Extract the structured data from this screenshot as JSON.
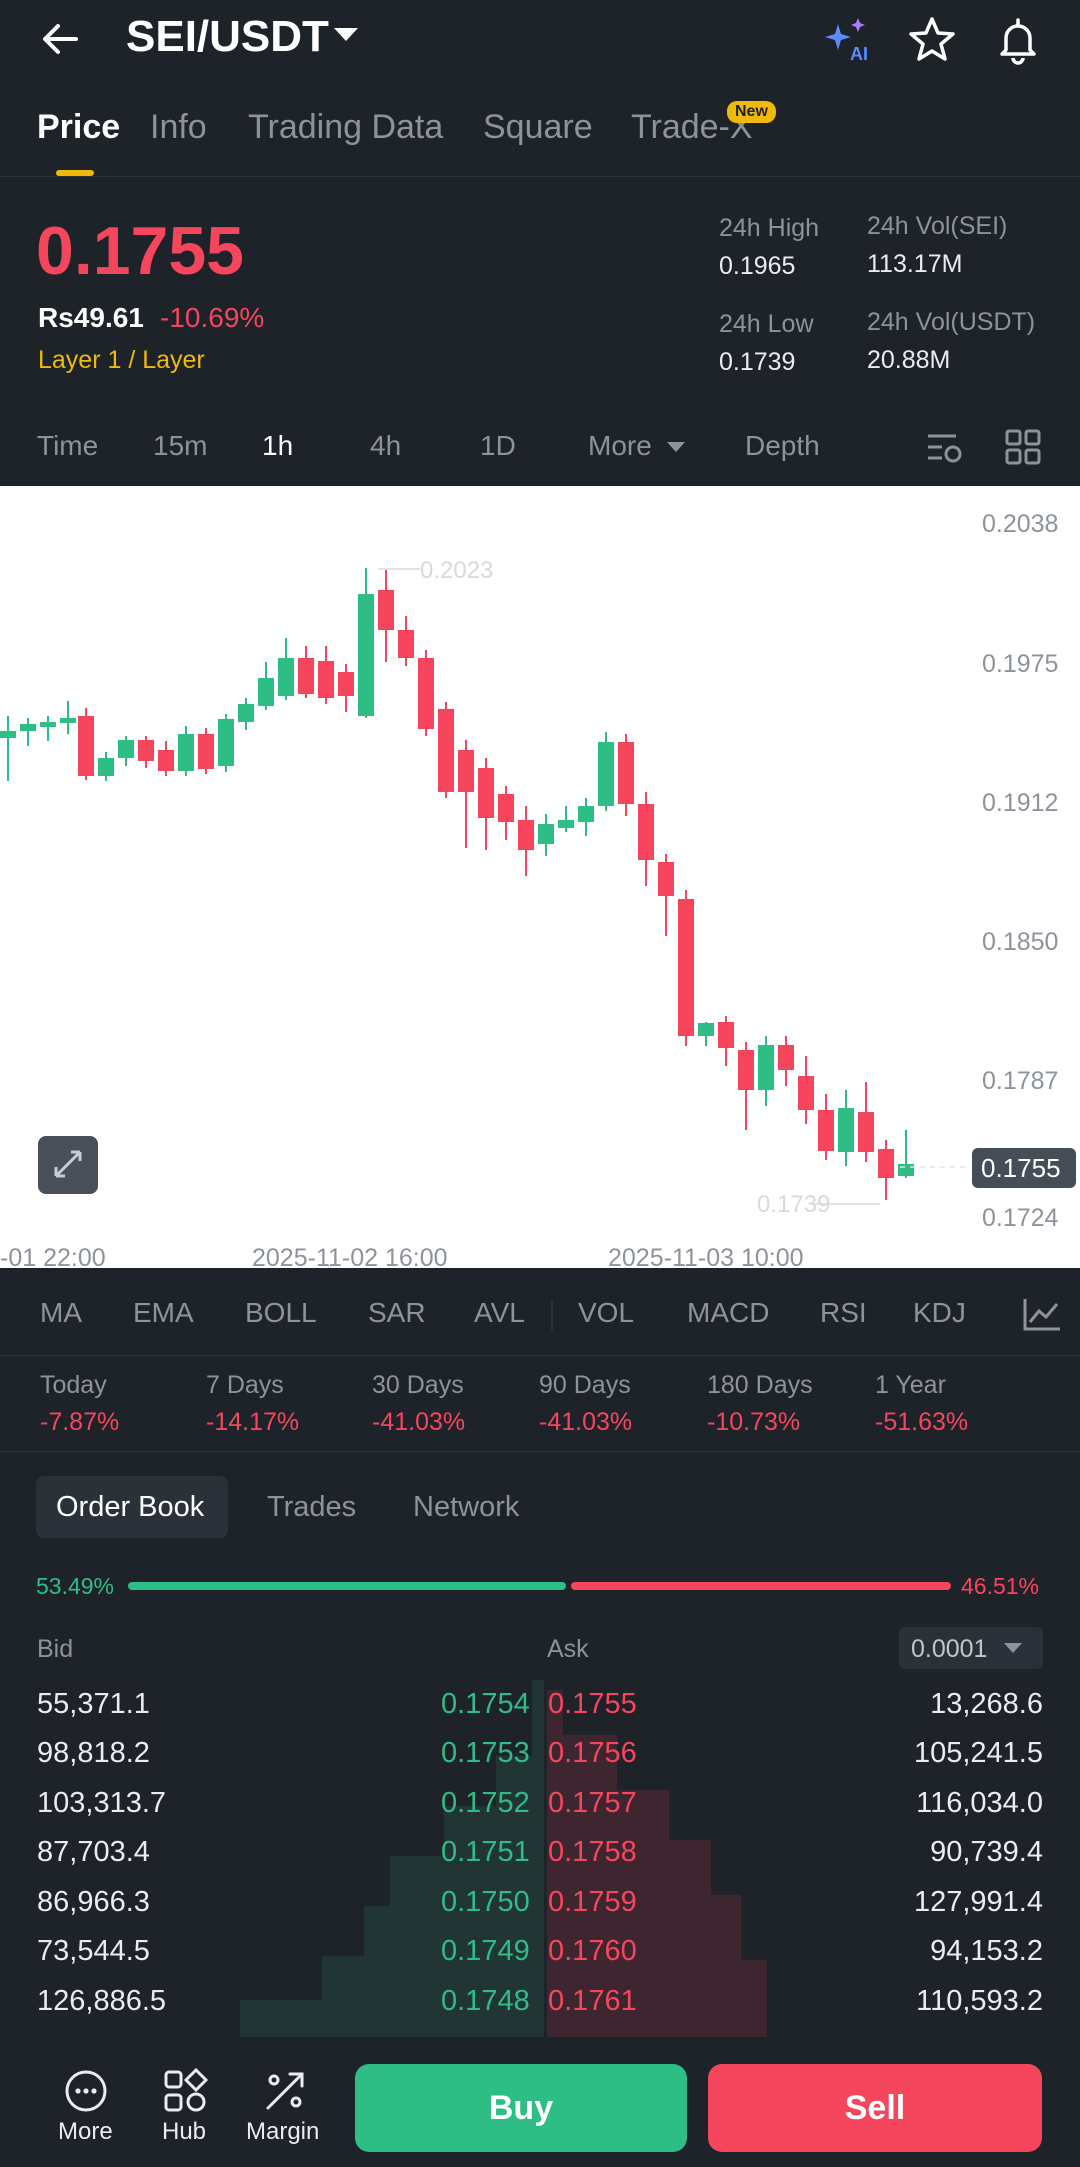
{
  "header": {
    "pair": "SEI/USDT",
    "ai_badge": "AI"
  },
  "tabs": [
    {
      "label": "Price"
    },
    {
      "label": "Info"
    },
    {
      "label": "Trading Data"
    },
    {
      "label": "Square"
    },
    {
      "label": "Trade-X"
    }
  ],
  "new_badge": "New",
  "price": {
    "last": "0.1755",
    "fiat": "Rs49.61",
    "change": "-10.69%",
    "category": "Layer 1 / Layer"
  },
  "stats": {
    "high_label": "24h High",
    "high": "0.1965",
    "low_label": "24h Low",
    "low": "0.1739",
    "vol_base_label": "24h Vol(SEI)",
    "vol_base": "113.17M",
    "vol_quote_label": "24h Vol(USDT)",
    "vol_quote": "20.88M"
  },
  "intervals": [
    "Time",
    "15m",
    "1h",
    "4h",
    "1D",
    "More",
    "Depth"
  ],
  "chart": {
    "y_ticks": [
      "0.2038",
      "0.1975",
      "0.1912",
      "0.1850",
      "0.1787",
      "0.1724"
    ],
    "x_ticks": [
      "-01 22:00",
      "2025-11-02 16:00",
      "2025-11-03 10:00"
    ],
    "high_marker": "0.2023",
    "low_marker": "0.1739",
    "last_price_tag": "0.1755"
  },
  "indicators": [
    "MA",
    "EMA",
    "BOLL",
    "SAR",
    "AVL",
    "VOL",
    "MACD",
    "RSI",
    "KDJ"
  ],
  "performance": [
    {
      "label": "Today",
      "value": "-7.87%"
    },
    {
      "label": "7 Days",
      "value": "-14.17%"
    },
    {
      "label": "30 Days",
      "value": "-41.03%"
    },
    {
      "label": "90 Days",
      "value": "-41.03%"
    },
    {
      "label": "180 Days",
      "value": "-10.73%"
    },
    {
      "label": "1 Year",
      "value": "-51.63%"
    }
  ],
  "orderbook_tabs": [
    "Order Book",
    "Trades",
    "Network"
  ],
  "ratio": {
    "bid": "53.49%",
    "ask": "46.51%"
  },
  "orderbook": {
    "bid_label": "Bid",
    "ask_label": "Ask",
    "precision": "0.0001",
    "rows": [
      {
        "bid_qty": "55,371.1",
        "bid_price": "0.1754",
        "ask_price": "0.1755",
        "ask_qty": "13,268.6"
      },
      {
        "bid_qty": "98,818.2",
        "bid_price": "0.1753",
        "ask_price": "0.1756",
        "ask_qty": "105,241.5"
      },
      {
        "bid_qty": "103,313.7",
        "bid_price": "0.1752",
        "ask_price": "0.1757",
        "ask_qty": "116,034.0"
      },
      {
        "bid_qty": "87,703.4",
        "bid_price": "0.1751",
        "ask_price": "0.1758",
        "ask_qty": "90,739.4"
      },
      {
        "bid_qty": "86,966.3",
        "bid_price": "0.1750",
        "ask_price": "0.1759",
        "ask_qty": "127,991.4"
      },
      {
        "bid_qty": "73,544.5",
        "bid_price": "0.1749",
        "ask_price": "0.1760",
        "ask_qty": "94,153.2"
      },
      {
        "bid_qty": "126,886.5",
        "bid_price": "0.1748",
        "ask_price": "0.1761",
        "ask_qty": "110,593.2"
      }
    ]
  },
  "bottom": {
    "more": "More",
    "hub": "Hub",
    "margin": "Margin",
    "buy": "Buy",
    "sell": "Sell"
  },
  "colors": {
    "up": "#2ebd85",
    "down": "#f6465d",
    "accent": "#f0b90b",
    "background": "#1e2229"
  }
}
